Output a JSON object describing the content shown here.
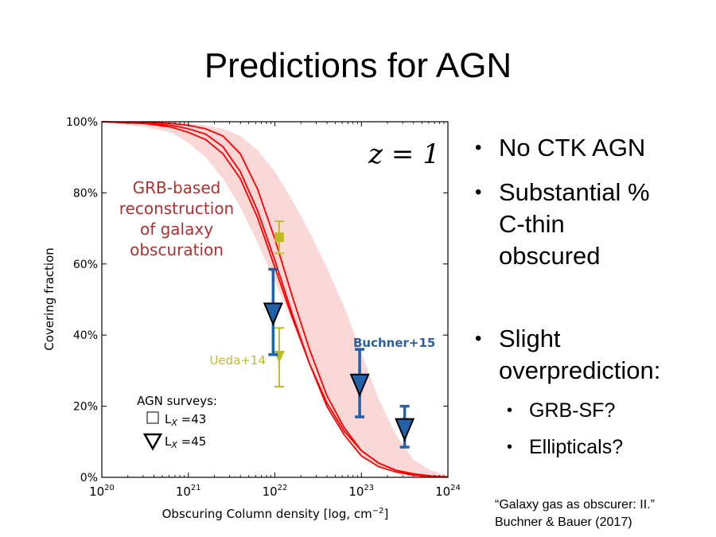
{
  "slide": {
    "title": "Predictions for AGN",
    "bullets": [
      {
        "lines": [
          "No CTK AGN"
        ]
      },
      {
        "lines": [
          "Substantial %",
          "C-thin",
          "obscured"
        ]
      },
      {
        "lines": [
          "Slight",
          "overprediction:"
        ]
      }
    ],
    "sub_bullets": [
      "GRB-SF?",
      "Ellipticals?"
    ],
    "citation": [
      "“Galaxy gas as obscurer: II.”",
      "Buchner & Bauer (2017)"
    ]
  },
  "chart_data": {
    "type": "line",
    "xlabel": "Obscuring Column density [log, cm",
    "xlabel_sup": "−2",
    "xlabel_end": "]",
    "ylabel": "Covering fraction",
    "xscale": "log",
    "xlim": [
      20,
      24
    ],
    "ylim": [
      0,
      100
    ],
    "x_ticks": [
      {
        "base": "10",
        "exp": "20"
      },
      {
        "base": "10",
        "exp": "21"
      },
      {
        "base": "10",
        "exp": "22"
      },
      {
        "base": "10",
        "exp": "23"
      },
      {
        "base": "10",
        "exp": "24"
      }
    ],
    "y_ticks": [
      "0%",
      "20%",
      "40%",
      "60%",
      "80%",
      "100%"
    ],
    "redshift_label": "z = 1",
    "model_label": [
      "GRB-based",
      "reconstruction",
      "of galaxy",
      "obscuration"
    ],
    "band": {
      "x": [
        20.0,
        20.5,
        20.8,
        21.0,
        21.2,
        21.4,
        21.6,
        21.8,
        22.0,
        22.2,
        22.4,
        22.6,
        22.8,
        23.0,
        23.2,
        23.4,
        23.6,
        23.8,
        24.0
      ],
      "lower": [
        100,
        98.5,
        97,
        94,
        90,
        84,
        76,
        66,
        55,
        44,
        33,
        22,
        13,
        6,
        3,
        1.5,
        0.5,
        0.2,
        0
      ],
      "upper": [
        100,
        100,
        100,
        99.5,
        99,
        98,
        96,
        92,
        86,
        78,
        69,
        59,
        48,
        35,
        22,
        12,
        5,
        2,
        0.5
      ]
    },
    "series": [
      {
        "x": [
          20.0,
          20.5,
          20.8,
          21.0,
          21.2,
          21.4,
          21.6,
          21.8,
          22.0,
          22.2,
          22.4,
          22.6,
          22.8,
          23.0,
          23.2,
          23.4,
          23.6,
          23.8,
          24.0
        ],
        "y": [
          100,
          99.5,
          98.5,
          97,
          95,
          91,
          84,
          73,
          59,
          45,
          32,
          21,
          13,
          7.5,
          4,
          2,
          1,
          0.4,
          0.1
        ]
      },
      {
        "x": [
          20.0,
          20.5,
          20.8,
          21.0,
          21.2,
          21.4,
          21.6,
          21.8,
          22.0,
          22.2,
          22.4,
          22.6,
          22.8,
          23.0,
          23.2,
          23.4,
          23.6,
          23.8,
          24.0
        ],
        "y": [
          100,
          99.5,
          99,
          98,
          96.5,
          93,
          86,
          75,
          61,
          46,
          32,
          20,
          12,
          6,
          3,
          1.5,
          0.6,
          0.2,
          0.1
        ]
      },
      {
        "x": [
          20.0,
          20.5,
          20.8,
          21.0,
          21.2,
          21.4,
          21.6,
          21.8,
          22.0,
          22.2,
          22.4,
          22.6,
          22.8,
          23.0,
          23.2,
          23.4,
          23.6,
          23.8,
          24.0
        ],
        "y": [
          100,
          99.8,
          99.5,
          99,
          98,
          96,
          91,
          81,
          67,
          51,
          36,
          23,
          14,
          7.5,
          4,
          2,
          0.8,
          0.3,
          0.1
        ]
      }
    ],
    "surveys": [
      {
        "name": "Ueda+14",
        "color": "#bcbd22",
        "label_color": "#bcbd22",
        "points": [
          {
            "x": 22.05,
            "y": 67.5,
            "lo": 63,
            "hi": 72,
            "marker": "square"
          },
          {
            "x": 22.05,
            "y": 34,
            "lo": 25.5,
            "hi": 42,
            "marker": "triangle"
          }
        ]
      },
      {
        "name": "Buchner+15",
        "color": "#2260a8",
        "label_color": "#2a5fa0",
        "points": [
          {
            "x": 21.98,
            "y": 46,
            "lo": 34.5,
            "hi": 58.5,
            "marker": "triangle"
          },
          {
            "x": 22.98,
            "y": 26,
            "lo": 17,
            "hi": 36,
            "marker": "triangle"
          },
          {
            "x": 23.5,
            "y": 13.5,
            "lo": 8.5,
            "hi": 20,
            "marker": "triangle"
          }
        ]
      }
    ],
    "legend": {
      "title": "AGN surveys:",
      "entries": [
        {
          "marker": "square",
          "label": "L",
          "sub": "X",
          "value": " =43"
        },
        {
          "marker": "triangle",
          "label": "L",
          "sub": "X",
          "value": " =45"
        }
      ]
    },
    "colors": {
      "model": "#ff0000",
      "band": "#fbd8d8",
      "model_label": "#b03030"
    }
  }
}
